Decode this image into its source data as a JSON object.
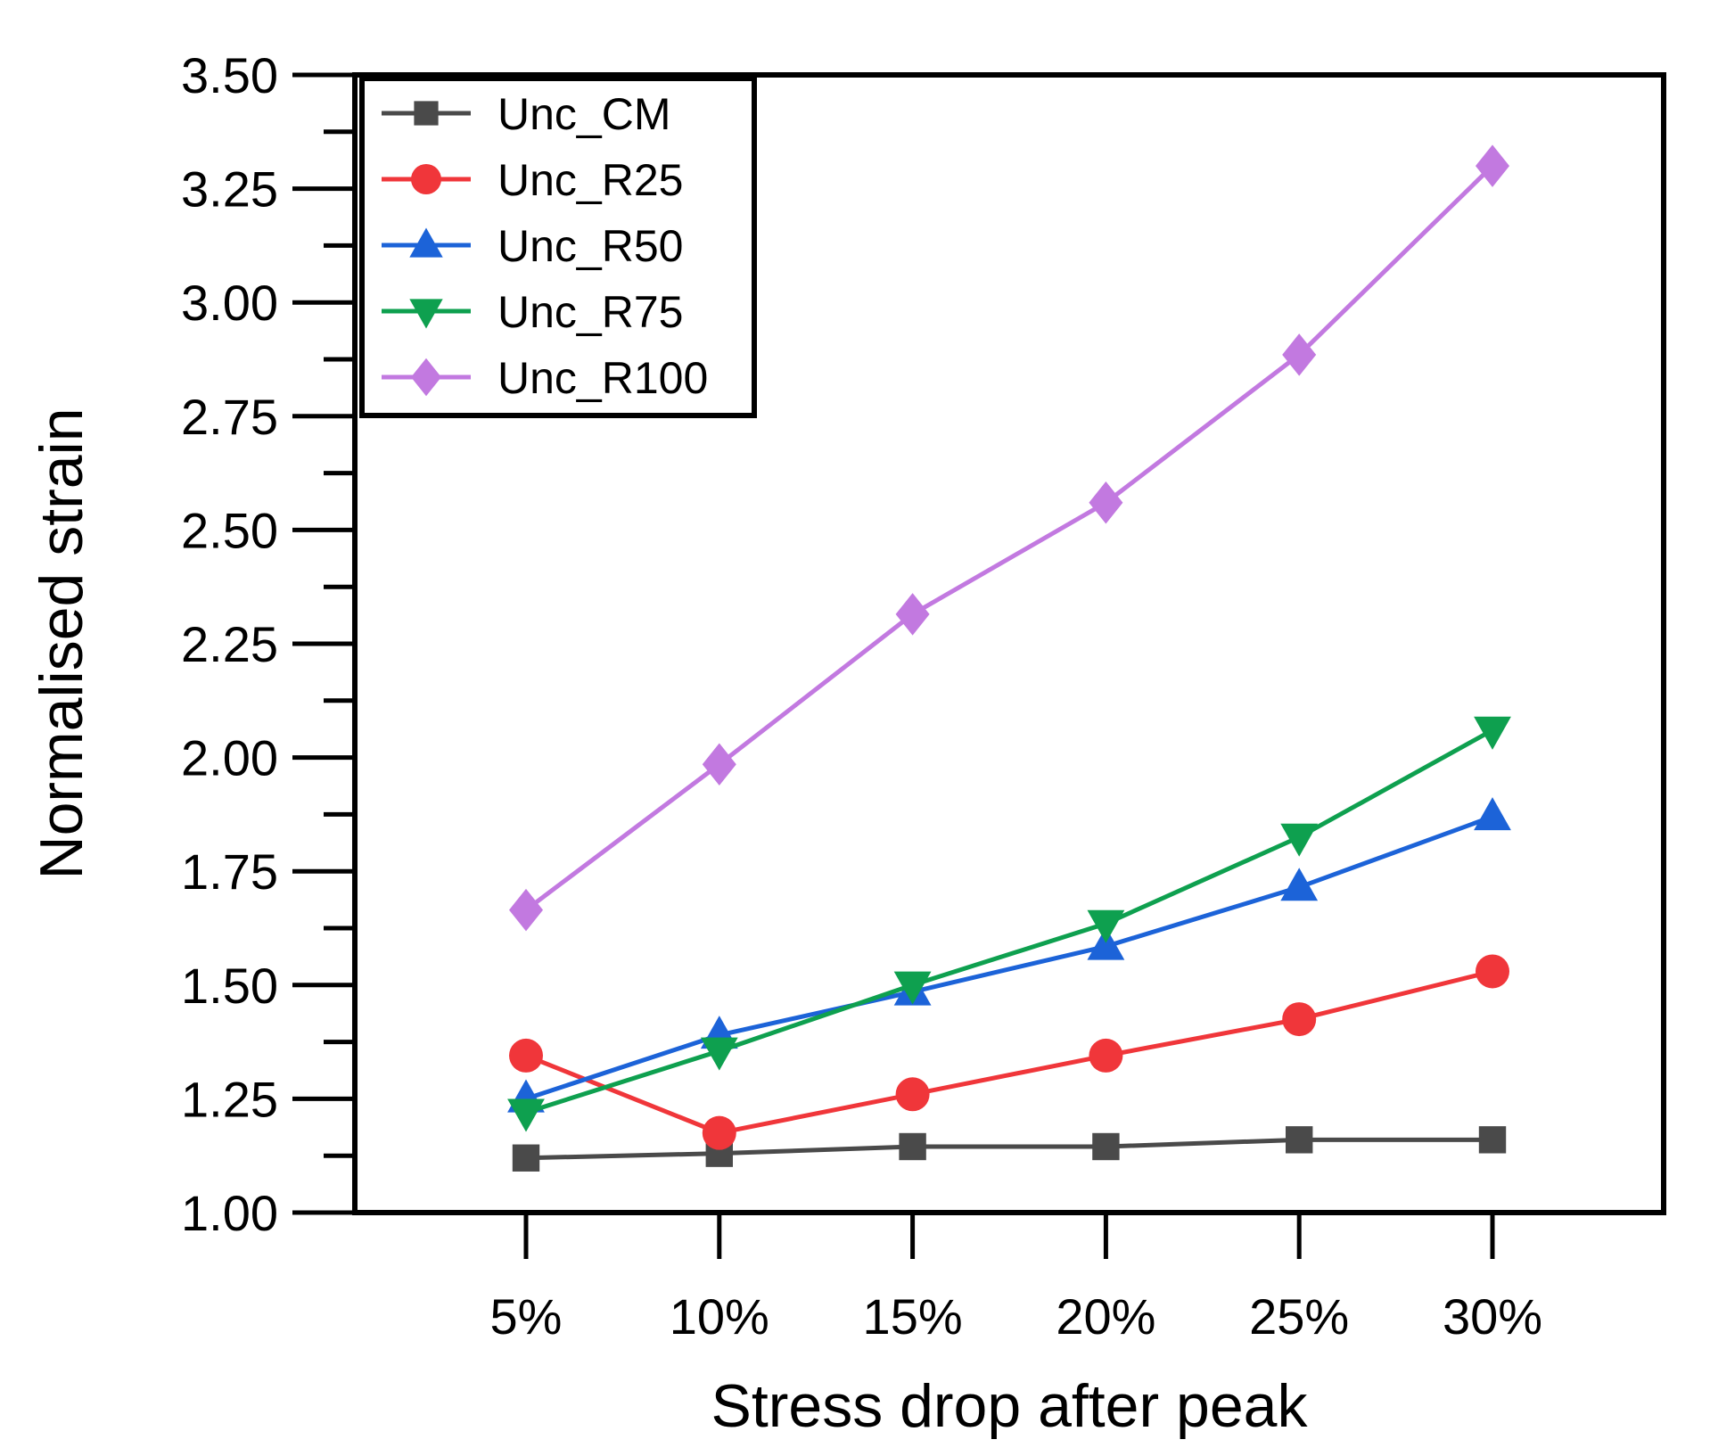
{
  "chart_data": {
    "type": "line",
    "title": "",
    "xlabel": "Stress drop after peak",
    "ylabel": "Normalised strain",
    "categories": [
      "5%",
      "10%",
      "15%",
      "20%",
      "25%",
      "30%"
    ],
    "ylim": [
      1.0,
      3.5
    ],
    "yticks": [
      "1.00",
      "1.25",
      "1.50",
      "1.75",
      "2.00",
      "2.25",
      "2.50",
      "2.75",
      "3.00",
      "3.25",
      "3.50"
    ],
    "grid": false,
    "legend_position": "top-left",
    "series": [
      {
        "name": "Unc_CM",
        "color": "#4a4a4a",
        "marker": "square",
        "values": [
          1.12,
          1.13,
          1.145,
          1.145,
          1.16,
          1.16
        ]
      },
      {
        "name": "Unc_R25",
        "color": "#f0363a",
        "marker": "circle",
        "values": [
          1.345,
          1.175,
          1.26,
          1.345,
          1.425,
          1.53
        ]
      },
      {
        "name": "Unc_R50",
        "color": "#1c63d8",
        "marker": "triangle-up",
        "values": [
          1.25,
          1.39,
          1.485,
          1.585,
          1.715,
          1.87
        ]
      },
      {
        "name": "Unc_R75",
        "color": "#0ea04f",
        "marker": "triangle-down",
        "values": [
          1.22,
          1.355,
          1.5,
          1.635,
          1.825,
          2.06
        ]
      },
      {
        "name": "Unc_R100",
        "color": "#c279e0",
        "marker": "diamond",
        "values": [
          1.665,
          1.985,
          2.315,
          2.56,
          2.885,
          3.3
        ]
      }
    ]
  }
}
